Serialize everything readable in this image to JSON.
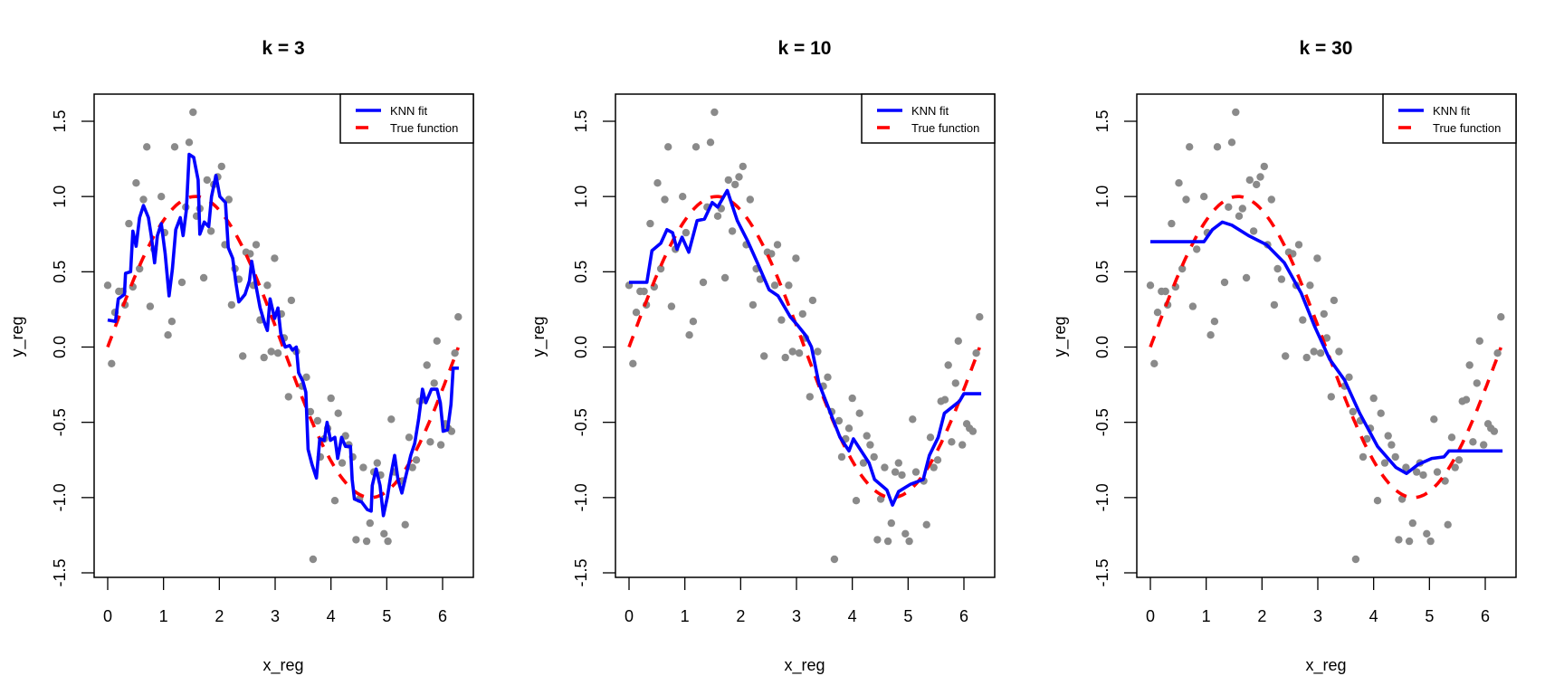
{
  "chart_data": [
    {
      "type": "scatter",
      "title": "k = 3",
      "xlabel": "x_reg",
      "ylabel": "y_reg",
      "xlim": [
        -0.25,
        6.55
      ],
      "ylim": [
        -1.6,
        1.7
      ],
      "xticks": [
        "0",
        "1",
        "2",
        "3",
        "4",
        "5",
        "6"
      ],
      "yticks": [
        "-1.5",
        "-1.0",
        "-0.5",
        "0.0",
        "0.5",
        "1.0",
        "1.5"
      ],
      "grid": false,
      "legend": {
        "position": "top-right",
        "entries": [
          "KNN fit",
          "True function"
        ]
      },
      "series": [
        {
          "name": "KNN fit",
          "kind": "step-line",
          "k": 3,
          "x": [
            0.0,
            0.14,
            0.19,
            0.3,
            0.32,
            0.41,
            0.45,
            0.51,
            0.57,
            0.64,
            0.73,
            0.78,
            0.84,
            0.89,
            0.96,
            1.03,
            1.1,
            1.16,
            1.22,
            1.3,
            1.35,
            1.41,
            1.46,
            1.54,
            1.62,
            1.65,
            1.73,
            1.81,
            1.86,
            1.94,
            2.01,
            2.11,
            2.16,
            2.24,
            2.3,
            2.35,
            2.46,
            2.54,
            2.58,
            2.65,
            2.73,
            2.81,
            2.86,
            2.91,
            2.99,
            3.05,
            3.1,
            3.18,
            3.26,
            3.31,
            3.38,
            3.42,
            3.5,
            3.55,
            3.59,
            3.66,
            3.74,
            3.8,
            3.88,
            3.93,
            3.99,
            4.07,
            4.12,
            4.19,
            4.26,
            4.35,
            4.38,
            4.42,
            4.55,
            4.65,
            4.72,
            4.74,
            4.81,
            4.88,
            4.94,
            5.01,
            5.07,
            5.14,
            5.2,
            5.27,
            5.34,
            5.43,
            5.5,
            5.57,
            5.64,
            5.7,
            5.8,
            5.9,
            5.96,
            6.01,
            6.09,
            6.15,
            6.19,
            6.29
          ],
          "y": [
            0.18,
            0.17,
            0.32,
            0.35,
            0.49,
            0.5,
            0.77,
            0.67,
            0.86,
            0.94,
            0.86,
            0.74,
            0.56,
            0.74,
            0.82,
            0.62,
            0.34,
            0.52,
            0.78,
            0.86,
            0.74,
            0.91,
            1.28,
            1.26,
            1.11,
            0.75,
            0.83,
            0.8,
            1.0,
            1.14,
            1.0,
            0.96,
            0.66,
            0.59,
            0.42,
            0.3,
            0.35,
            0.44,
            0.57,
            0.42,
            0.26,
            0.16,
            0.11,
            0.32,
            0.19,
            0.26,
            0.09,
            0.0,
            0.01,
            -0.02,
            0.0,
            -0.17,
            -0.23,
            -0.3,
            -0.68,
            -0.78,
            -0.87,
            -0.61,
            -0.62,
            -0.5,
            -0.62,
            -0.6,
            -0.74,
            -0.6,
            -0.66,
            -0.66,
            -0.88,
            -1.01,
            -1.03,
            -1.08,
            -1.09,
            -0.92,
            -0.81,
            -0.92,
            -1.12,
            -1.0,
            -0.86,
            -0.72,
            -0.88,
            -0.97,
            -0.86,
            -0.72,
            -0.64,
            -0.48,
            -0.28,
            -0.37,
            -0.28,
            -0.28,
            -0.37,
            -0.56,
            -0.55,
            -0.38,
            -0.14,
            -0.14
          ],
          "color": "#0000ff"
        },
        {
          "name": "True function",
          "kind": "dashed-line",
          "function": "sin(x)",
          "x_range": [
            0,
            6.28
          ],
          "color": "#ff0000"
        }
      ]
    },
    {
      "type": "scatter",
      "title": "k = 10",
      "xlabel": "x_reg",
      "ylabel": "y_reg",
      "xlim": [
        -0.25,
        6.55
      ],
      "ylim": [
        -1.6,
        1.7
      ],
      "xticks": [
        "0",
        "1",
        "2",
        "3",
        "4",
        "5",
        "6"
      ],
      "yticks": [
        "-1.5",
        "-1.0",
        "-0.5",
        "0.0",
        "0.5",
        "1.0",
        "1.5"
      ],
      "grid": false,
      "legend": {
        "position": "top-right",
        "entries": [
          "KNN fit",
          "True function"
        ]
      },
      "series": [
        {
          "name": "KNN fit",
          "kind": "step-line",
          "k": 10,
          "x": [
            0.0,
            0.32,
            0.41,
            0.57,
            0.68,
            0.78,
            0.86,
            0.95,
            1.07,
            1.22,
            1.35,
            1.49,
            1.59,
            1.76,
            1.94,
            2.13,
            2.3,
            2.51,
            2.67,
            2.89,
            3.03,
            3.16,
            3.27,
            3.4,
            3.59,
            3.78,
            3.94,
            4.02,
            4.3,
            4.4,
            4.62,
            4.72,
            4.83,
            5.05,
            5.27,
            5.38,
            5.54,
            5.65,
            5.92,
            6.0,
            6.31
          ],
          "y": [
            0.43,
            0.43,
            0.64,
            0.69,
            0.78,
            0.76,
            0.65,
            0.73,
            0.63,
            0.84,
            0.85,
            0.96,
            0.93,
            1.04,
            0.84,
            0.7,
            0.56,
            0.38,
            0.34,
            0.2,
            0.14,
            0.08,
            0.0,
            -0.24,
            -0.42,
            -0.6,
            -0.69,
            -0.61,
            -0.77,
            -0.88,
            -0.95,
            -1.05,
            -0.96,
            -0.91,
            -0.88,
            -0.72,
            -0.6,
            -0.44,
            -0.36,
            -0.31,
            -0.31
          ],
          "color": "#0000ff"
        },
        {
          "name": "True function",
          "kind": "dashed-line",
          "function": "sin(x)",
          "x_range": [
            0,
            6.28
          ],
          "color": "#ff0000"
        }
      ]
    },
    {
      "type": "scatter",
      "title": "k = 30",
      "xlabel": "x_reg",
      "ylabel": "y_reg",
      "xlim": [
        -0.25,
        6.55
      ],
      "ylim": [
        -1.6,
        1.7
      ],
      "xticks": [
        "0",
        "1",
        "2",
        "3",
        "4",
        "5",
        "6"
      ],
      "yticks": [
        "-1.5",
        "-1.0",
        "-0.5",
        "0.0",
        "0.5",
        "1.0",
        "1.5"
      ],
      "grid": false,
      "legend": {
        "position": "top-right",
        "entries": [
          "KNN fit",
          "True function"
        ]
      },
      "series": [
        {
          "name": "KNN fit",
          "kind": "step-line",
          "k": 30,
          "x": [
            0.0,
            0.96,
            1.11,
            1.29,
            1.46,
            1.76,
            2.08,
            2.4,
            2.7,
            2.94,
            3.21,
            3.48,
            3.75,
            4.07,
            4.4,
            4.59,
            4.8,
            5.04,
            5.26,
            5.35,
            6.31
          ],
          "y": [
            0.7,
            0.7,
            0.78,
            0.83,
            0.81,
            0.74,
            0.68,
            0.56,
            0.36,
            0.14,
            -0.08,
            -0.22,
            -0.44,
            -0.66,
            -0.8,
            -0.84,
            -0.78,
            -0.74,
            -0.73,
            -0.69,
            -0.69
          ],
          "color": "#0000ff"
        },
        {
          "name": "True function",
          "kind": "dashed-line",
          "function": "sin(x)",
          "x_range": [
            0,
            6.28
          ],
          "color": "#ff0000"
        }
      ]
    }
  ],
  "observations": {
    "name": "data points",
    "color": "#8a8a8a",
    "points": [
      [
        0.0,
        0.41
      ],
      [
        0.07,
        -0.11
      ],
      [
        0.13,
        0.23
      ],
      [
        0.2,
        0.37
      ],
      [
        0.27,
        0.37
      ],
      [
        0.31,
        0.28
      ],
      [
        0.38,
        0.82
      ],
      [
        0.45,
        0.4
      ],
      [
        0.51,
        1.09
      ],
      [
        0.57,
        0.52
      ],
      [
        0.64,
        0.98
      ],
      [
        0.7,
        1.33
      ],
      [
        0.76,
        0.27
      ],
      [
        0.83,
        0.65
      ],
      [
        0.96,
        1.0
      ],
      [
        1.02,
        0.76
      ],
      [
        1.08,
        0.08
      ],
      [
        1.15,
        0.17
      ],
      [
        1.2,
        1.33
      ],
      [
        1.33,
        0.43
      ],
      [
        1.4,
        0.93
      ],
      [
        1.46,
        1.36
      ],
      [
        1.53,
        1.56
      ],
      [
        1.59,
        0.87
      ],
      [
        1.65,
        0.92
      ],
      [
        1.72,
        0.46
      ],
      [
        1.78,
        1.11
      ],
      [
        1.85,
        0.77
      ],
      [
        1.9,
        1.08
      ],
      [
        1.97,
        1.13
      ],
      [
        2.04,
        1.2
      ],
      [
        2.1,
        0.68
      ],
      [
        2.17,
        0.98
      ],
      [
        2.22,
        0.28
      ],
      [
        2.28,
        0.52
      ],
      [
        2.35,
        0.45
      ],
      [
        2.42,
        -0.06
      ],
      [
        2.48,
        0.63
      ],
      [
        2.55,
        0.62
      ],
      [
        2.61,
        0.41
      ],
      [
        2.66,
        0.68
      ],
      [
        2.73,
        0.18
      ],
      [
        2.8,
        -0.07
      ],
      [
        2.86,
        0.41
      ],
      [
        2.93,
        -0.03
      ],
      [
        2.99,
        0.59
      ],
      [
        3.05,
        -0.04
      ],
      [
        3.11,
        0.22
      ],
      [
        3.16,
        0.06
      ],
      [
        3.24,
        -0.33
      ],
      [
        3.29,
        0.31
      ],
      [
        3.38,
        -0.03
      ],
      [
        3.48,
        -0.26
      ],
      [
        3.56,
        -0.2
      ],
      [
        3.63,
        -0.43
      ],
      [
        3.68,
        -1.41
      ],
      [
        3.76,
        -0.49
      ],
      [
        3.81,
        -0.73
      ],
      [
        3.88,
        -0.61
      ],
      [
        3.94,
        -0.54
      ],
      [
        4.0,
        -0.34
      ],
      [
        4.07,
        -1.02
      ],
      [
        4.13,
        -0.44
      ],
      [
        4.2,
        -0.77
      ],
      [
        4.26,
        -0.59
      ],
      [
        4.32,
        -0.65
      ],
      [
        4.39,
        -0.73
      ],
      [
        4.45,
        -1.28
      ],
      [
        4.51,
        -1.01
      ],
      [
        4.58,
        -0.8
      ],
      [
        4.64,
        -1.29
      ],
      [
        4.7,
        -1.17
      ],
      [
        4.77,
        -0.83
      ],
      [
        4.83,
        -0.77
      ],
      [
        4.89,
        -0.85
      ],
      [
        4.95,
        -1.24
      ],
      [
        5.02,
        -1.29
      ],
      [
        5.08,
        -0.48
      ],
      [
        5.14,
        -0.83
      ],
      [
        5.28,
        -0.89
      ],
      [
        5.33,
        -1.18
      ],
      [
        5.4,
        -0.6
      ],
      [
        5.46,
        -0.8
      ],
      [
        5.53,
        -0.75
      ],
      [
        5.59,
        -0.36
      ],
      [
        5.66,
        -0.35
      ],
      [
        5.72,
        -0.12
      ],
      [
        5.78,
        -0.63
      ],
      [
        5.85,
        -0.24
      ],
      [
        5.9,
        0.04
      ],
      [
        5.97,
        -0.65
      ],
      [
        6.05,
        -0.51
      ],
      [
        6.1,
        -0.54
      ],
      [
        6.16,
        -0.56
      ],
      [
        6.22,
        -0.04
      ],
      [
        6.28,
        0.2
      ]
    ]
  }
}
